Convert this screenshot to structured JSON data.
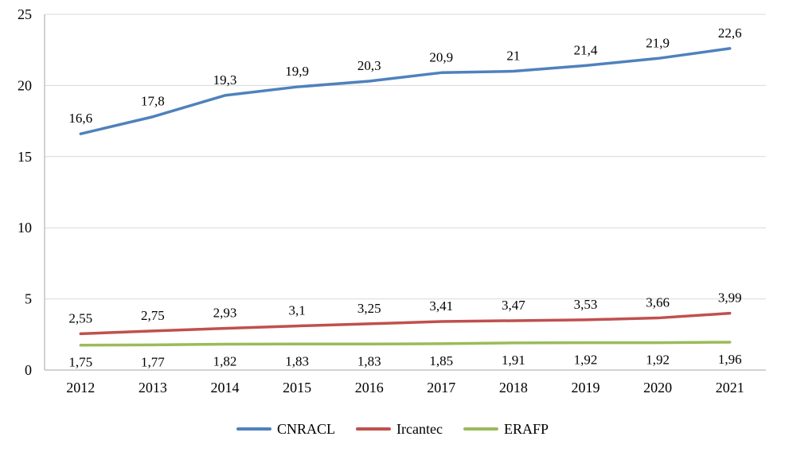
{
  "chart_data": {
    "type": "line",
    "title": "",
    "xlabel": "",
    "ylabel": "",
    "categories": [
      "2012",
      "2013",
      "2014",
      "2015",
      "2016",
      "2017",
      "2018",
      "2019",
      "2020",
      "2021"
    ],
    "series": [
      {
        "name": "CNRACL",
        "color": "#4F81BD",
        "values": [
          16.6,
          17.8,
          19.3,
          19.9,
          20.3,
          20.9,
          21,
          21.4,
          21.9,
          22.6
        ],
        "labels": [
          "16,6",
          "17,8",
          "19,3",
          "19,9",
          "20,3",
          "20,9",
          "21",
          "21,4",
          "21,9",
          "22,6"
        ],
        "label_position": "above"
      },
      {
        "name": "Ircantec",
        "color": "#C0504D",
        "values": [
          2.55,
          2.75,
          2.93,
          3.1,
          3.25,
          3.41,
          3.47,
          3.53,
          3.66,
          3.99
        ],
        "labels": [
          "2,55",
          "2,75",
          "2,93",
          "3,1",
          "3,25",
          "3,41",
          "3,47",
          "3,53",
          "3,66",
          "3,99"
        ],
        "label_position": "above"
      },
      {
        "name": "ERAFP",
        "color": "#9BBB59",
        "values": [
          1.75,
          1.77,
          1.82,
          1.83,
          1.83,
          1.85,
          1.91,
          1.92,
          1.92,
          1.96
        ],
        "labels": [
          "1,75",
          "1,77",
          "1,82",
          "1,83",
          "1,83",
          "1,85",
          "1,91",
          "1,92",
          "1,92",
          "1,96"
        ],
        "label_position": "below"
      }
    ],
    "ylim": [
      0,
      25
    ],
    "ytick_interval": 5,
    "yticks": [
      "0",
      "5",
      "10",
      "15",
      "20",
      "25"
    ],
    "grid": true,
    "legend_position": "bottom",
    "colors": {
      "grid": "#D9D9D9",
      "axis": "#A6A6A6",
      "text": "#000000"
    }
  }
}
